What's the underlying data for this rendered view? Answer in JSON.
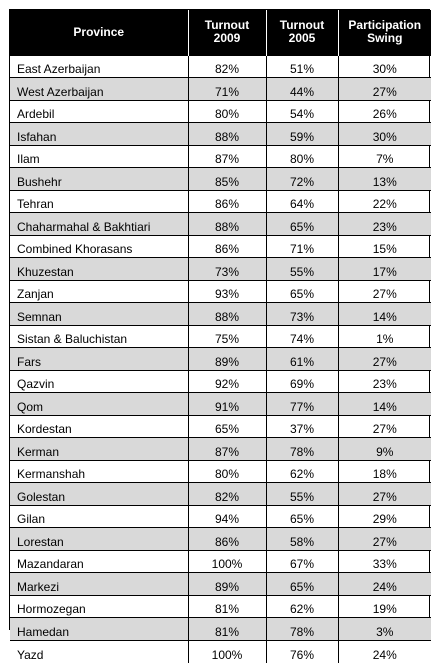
{
  "table": {
    "headers": {
      "province": "Province",
      "turnout_2009": "Turnout\n2009",
      "turnout_2005": "Turnout\n2005",
      "swing": "Participation\nSwing"
    },
    "rows": [
      {
        "province": "East Azerbaijan",
        "t2009": "82%",
        "t2005": "51%",
        "swing": "30%"
      },
      {
        "province": "West Azerbaijan",
        "t2009": "71%",
        "t2005": "44%",
        "swing": "27%"
      },
      {
        "province": "Ardebil",
        "t2009": "80%",
        "t2005": "54%",
        "swing": "26%"
      },
      {
        "province": "Isfahan",
        "t2009": "88%",
        "t2005": "59%",
        "swing": "30%"
      },
      {
        "province": "Ilam",
        "t2009": "87%",
        "t2005": "80%",
        "swing": "7%"
      },
      {
        "province": "Bushehr",
        "t2009": "85%",
        "t2005": "72%",
        "swing": "13%"
      },
      {
        "province": "Tehran",
        "t2009": "86%",
        "t2005": "64%",
        "swing": "22%"
      },
      {
        "province": "Chaharmahal & Bakhtiari",
        "t2009": "88%",
        "t2005": "65%",
        "swing": "23%"
      },
      {
        "province": "Combined Khorasans",
        "t2009": "86%",
        "t2005": "71%",
        "swing": "15%"
      },
      {
        "province": "Khuzestan",
        "t2009": "73%",
        "t2005": "55%",
        "swing": "17%"
      },
      {
        "province": "Zanjan",
        "t2009": "93%",
        "t2005": "65%",
        "swing": "27%"
      },
      {
        "province": "Semnan",
        "t2009": "88%",
        "t2005": "73%",
        "swing": "14%"
      },
      {
        "province": "Sistan & Baluchistan",
        "t2009": "75%",
        "t2005": "74%",
        "swing": "1%"
      },
      {
        "province": "Fars",
        "t2009": "89%",
        "t2005": "61%",
        "swing": "27%"
      },
      {
        "province": "Qazvin",
        "t2009": "92%",
        "t2005": "69%",
        "swing": "23%"
      },
      {
        "province": "Qom",
        "t2009": "91%",
        "t2005": "77%",
        "swing": "14%"
      },
      {
        "province": "Kordestan",
        "t2009": "65%",
        "t2005": "37%",
        "swing": "27%"
      },
      {
        "province": "Kerman",
        "t2009": "87%",
        "t2005": "78%",
        "swing": "9%"
      },
      {
        "province": "Kermanshah",
        "t2009": "80%",
        "t2005": "62%",
        "swing": "18%"
      },
      {
        "province": "Golestan",
        "t2009": "82%",
        "t2005": "55%",
        "swing": "27%"
      },
      {
        "province": "Gilan",
        "t2009": "94%",
        "t2005": "65%",
        "swing": "29%"
      },
      {
        "province": "Lorestan",
        "t2009": "86%",
        "t2005": "58%",
        "swing": "27%"
      },
      {
        "province": "Mazandaran",
        "t2009": "100%",
        "t2005": "67%",
        "swing": "33%"
      },
      {
        "province": "Markezi",
        "t2009": "89%",
        "t2005": "65%",
        "swing": "24%"
      },
      {
        "province": "Hormozegan",
        "t2009": "81%",
        "t2005": "62%",
        "swing": "19%"
      },
      {
        "province": "Hamedan",
        "t2009": "81%",
        "t2005": "78%",
        "swing": "3%"
      },
      {
        "province": "Yazd",
        "t2009": "100%",
        "t2005": "76%",
        "swing": "24%"
      }
    ]
  }
}
